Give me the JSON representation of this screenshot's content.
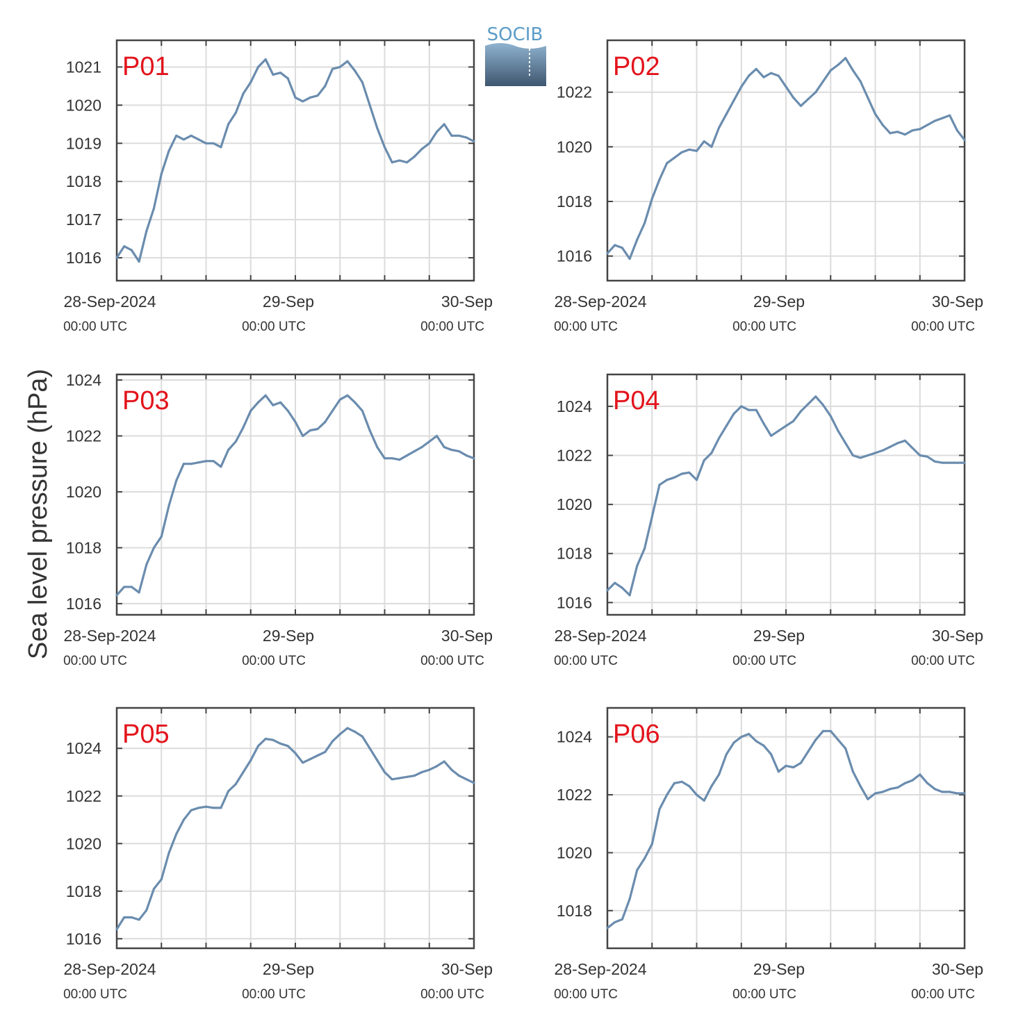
{
  "logo": {
    "text": "SOCIB"
  },
  "ylabel": "Sea level pressure (hPa)",
  "colors": {
    "series": "#6a8cae",
    "panel_label": "#e3131b",
    "frame": "#444444",
    "grid": "#dcdcdc"
  },
  "xaxis": {
    "range": [
      "2024-09-28 00:00",
      "2024-09-30 00:00"
    ],
    "major_ticks": [
      {
        "date": "28-Sep-2024",
        "time": "00:00 UTC"
      },
      {
        "date": "29-Sep",
        "time": "00:00 UTC"
      },
      {
        "date": "30-Sep",
        "time": "00:00 UTC"
      }
    ]
  },
  "chart_data": [
    {
      "type": "line",
      "panel": "P01",
      "grid": true,
      "ylim": [
        1015.4,
        1021.7
      ],
      "yticks": [
        1016,
        1017,
        1018,
        1019,
        1020,
        1021
      ],
      "x_hours": [
        0,
        1,
        2,
        3,
        4,
        5,
        6,
        7,
        8,
        9,
        10,
        11,
        12,
        13,
        14,
        15,
        16,
        17,
        18,
        19,
        20,
        21,
        22,
        23,
        24,
        25,
        26,
        27,
        28,
        29,
        30,
        31,
        32,
        33,
        34,
        35,
        36,
        37,
        38,
        39,
        40,
        41,
        42,
        43,
        44,
        45,
        46,
        47,
        48
      ],
      "y": [
        1016.0,
        1016.3,
        1016.2,
        1015.9,
        1016.7,
        1017.3,
        1018.2,
        1018.8,
        1019.2,
        1019.1,
        1019.2,
        1019.1,
        1019.0,
        1019.0,
        1018.9,
        1019.5,
        1019.8,
        1020.3,
        1020.6,
        1021.0,
        1021.2,
        1020.8,
        1020.85,
        1020.7,
        1020.2,
        1020.1,
        1020.2,
        1020.25,
        1020.5,
        1020.95,
        1021.0,
        1021.15,
        1020.9,
        1020.6,
        1020.0,
        1019.4,
        1018.9,
        1018.5,
        1018.55,
        1018.5,
        1018.65,
        1018.85,
        1019.0,
        1019.3,
        1019.5,
        1019.2,
        1019.2,
        1019.15,
        1019.05
      ]
    },
    {
      "type": "line",
      "panel": "P02",
      "grid": true,
      "ylim": [
        1015.1,
        1023.9
      ],
      "yticks": [
        1016,
        1018,
        1020,
        1022
      ],
      "x_hours": [
        0,
        1,
        2,
        3,
        4,
        5,
        6,
        7,
        8,
        9,
        10,
        11,
        12,
        13,
        14,
        15,
        16,
        17,
        18,
        19,
        20,
        21,
        22,
        23,
        24,
        25,
        26,
        27,
        28,
        29,
        30,
        31,
        32,
        33,
        34,
        35,
        36,
        37,
        38,
        39,
        40,
        41,
        42,
        43,
        44,
        45,
        46,
        47,
        48
      ],
      "y": [
        1016.1,
        1016.4,
        1016.3,
        1015.9,
        1016.6,
        1017.2,
        1018.1,
        1018.8,
        1019.4,
        1019.6,
        1019.8,
        1019.9,
        1019.85,
        1020.2,
        1020.0,
        1020.7,
        1021.2,
        1021.7,
        1022.2,
        1022.6,
        1022.85,
        1022.55,
        1022.7,
        1022.6,
        1022.2,
        1021.8,
        1021.5,
        1021.75,
        1022.0,
        1022.4,
        1022.8,
        1023.0,
        1023.25,
        1022.8,
        1022.4,
        1021.8,
        1021.2,
        1020.8,
        1020.5,
        1020.55,
        1020.45,
        1020.6,
        1020.65,
        1020.8,
        1020.95,
        1021.05,
        1021.15,
        1020.6,
        1020.25
      ]
    },
    {
      "type": "line",
      "panel": "P03",
      "grid": true,
      "ylim": [
        1015.6,
        1024.2
      ],
      "yticks": [
        1016,
        1018,
        1020,
        1022,
        1024
      ],
      "x_hours": [
        0,
        1,
        2,
        3,
        4,
        5,
        6,
        7,
        8,
        9,
        10,
        11,
        12,
        13,
        14,
        15,
        16,
        17,
        18,
        19,
        20,
        21,
        22,
        23,
        24,
        25,
        26,
        27,
        28,
        29,
        30,
        31,
        32,
        33,
        34,
        35,
        36,
        37,
        38,
        39,
        40,
        41,
        42,
        43,
        44,
        45,
        46,
        47,
        48
      ],
      "y": [
        1016.3,
        1016.6,
        1016.6,
        1016.4,
        1017.4,
        1018.0,
        1018.4,
        1019.5,
        1020.4,
        1021.0,
        1021.0,
        1021.05,
        1021.1,
        1021.1,
        1020.9,
        1021.5,
        1021.8,
        1022.3,
        1022.9,
        1023.2,
        1023.45,
        1023.1,
        1023.2,
        1022.9,
        1022.5,
        1022.0,
        1022.2,
        1022.25,
        1022.5,
        1022.9,
        1023.3,
        1023.45,
        1023.2,
        1022.9,
        1022.2,
        1021.6,
        1021.2,
        1021.2,
        1021.15,
        1021.3,
        1021.45,
        1021.6,
        1021.8,
        1022.0,
        1021.6,
        1021.5,
        1021.45,
        1021.3,
        1021.2
      ]
    },
    {
      "type": "line",
      "panel": "P04",
      "grid": true,
      "ylim": [
        1015.5,
        1025.3
      ],
      "yticks": [
        1016,
        1018,
        1020,
        1022,
        1024
      ],
      "x_hours": [
        0,
        1,
        2,
        3,
        4,
        5,
        6,
        7,
        8,
        9,
        10,
        11,
        12,
        13,
        14,
        15,
        16,
        17,
        18,
        19,
        20,
        21,
        22,
        23,
        24,
        25,
        26,
        27,
        28,
        29,
        30,
        31,
        32,
        33,
        34,
        35,
        36,
        37,
        38,
        39,
        40,
        41,
        42,
        43,
        44,
        45,
        46,
        47,
        48
      ],
      "y": [
        1016.5,
        1016.8,
        1016.6,
        1016.3,
        1017.5,
        1018.2,
        1019.5,
        1020.8,
        1021.0,
        1021.1,
        1021.25,
        1021.3,
        1021.0,
        1021.8,
        1022.1,
        1022.7,
        1023.2,
        1023.7,
        1024.0,
        1023.85,
        1023.85,
        1023.3,
        1022.8,
        1023.0,
        1023.2,
        1023.4,
        1023.8,
        1024.1,
        1024.4,
        1024.05,
        1023.6,
        1023.0,
        1022.5,
        1022.0,
        1021.9,
        1022.0,
        1022.1,
        1022.2,
        1022.35,
        1022.5,
        1022.6,
        1022.3,
        1022.0,
        1021.95,
        1021.75,
        1021.7,
        1021.7,
        1021.7,
        1021.7
      ]
    },
    {
      "type": "line",
      "panel": "P05",
      "grid": true,
      "ylim": [
        1015.6,
        1025.7
      ],
      "yticks": [
        1016,
        1018,
        1020,
        1022,
        1024
      ],
      "x_hours": [
        0,
        1,
        2,
        3,
        4,
        5,
        6,
        7,
        8,
        9,
        10,
        11,
        12,
        13,
        14,
        15,
        16,
        17,
        18,
        19,
        20,
        21,
        22,
        23,
        24,
        25,
        26,
        27,
        28,
        29,
        30,
        31,
        32,
        33,
        34,
        35,
        36,
        37,
        38,
        39,
        40,
        41,
        42,
        43,
        44,
        45,
        46,
        47,
        48
      ],
      "y": [
        1016.4,
        1016.9,
        1016.9,
        1016.8,
        1017.2,
        1018.1,
        1018.5,
        1019.6,
        1020.4,
        1021.0,
        1021.4,
        1021.5,
        1021.55,
        1021.5,
        1021.5,
        1022.2,
        1022.5,
        1023.0,
        1023.5,
        1024.1,
        1024.4,
        1024.35,
        1024.2,
        1024.1,
        1023.8,
        1023.4,
        1023.55,
        1023.7,
        1023.85,
        1024.3,
        1024.6,
        1024.85,
        1024.7,
        1024.5,
        1024.0,
        1023.5,
        1023.0,
        1022.7,
        1022.75,
        1022.8,
        1022.85,
        1023.0,
        1023.1,
        1023.25,
        1023.45,
        1023.1,
        1022.85,
        1022.7,
        1022.55
      ]
    },
    {
      "type": "line",
      "panel": "P06",
      "grid": true,
      "ylim": [
        1016.7,
        1025.0
      ],
      "yticks": [
        1018,
        1020,
        1022,
        1024
      ],
      "x_hours": [
        0,
        1,
        2,
        3,
        4,
        5,
        6,
        7,
        8,
        9,
        10,
        11,
        12,
        13,
        14,
        15,
        16,
        17,
        18,
        19,
        20,
        21,
        22,
        23,
        24,
        25,
        26,
        27,
        28,
        29,
        30,
        31,
        32,
        33,
        34,
        35,
        36,
        37,
        38,
        39,
        40,
        41,
        42,
        43,
        44,
        45,
        46,
        47,
        48
      ],
      "y": [
        1017.4,
        1017.6,
        1017.7,
        1018.4,
        1019.4,
        1019.8,
        1020.3,
        1021.5,
        1022.0,
        1022.4,
        1022.45,
        1022.3,
        1022.0,
        1021.8,
        1022.3,
        1022.7,
        1023.4,
        1023.8,
        1024.0,
        1024.1,
        1023.85,
        1023.7,
        1023.4,
        1022.8,
        1023.0,
        1022.95,
        1023.1,
        1023.5,
        1023.9,
        1024.2,
        1024.2,
        1023.9,
        1023.6,
        1022.8,
        1022.3,
        1021.85,
        1022.05,
        1022.1,
        1022.2,
        1022.25,
        1022.4,
        1022.5,
        1022.7,
        1022.4,
        1022.2,
        1022.1,
        1022.1,
        1022.05,
        1022.05
      ]
    }
  ]
}
